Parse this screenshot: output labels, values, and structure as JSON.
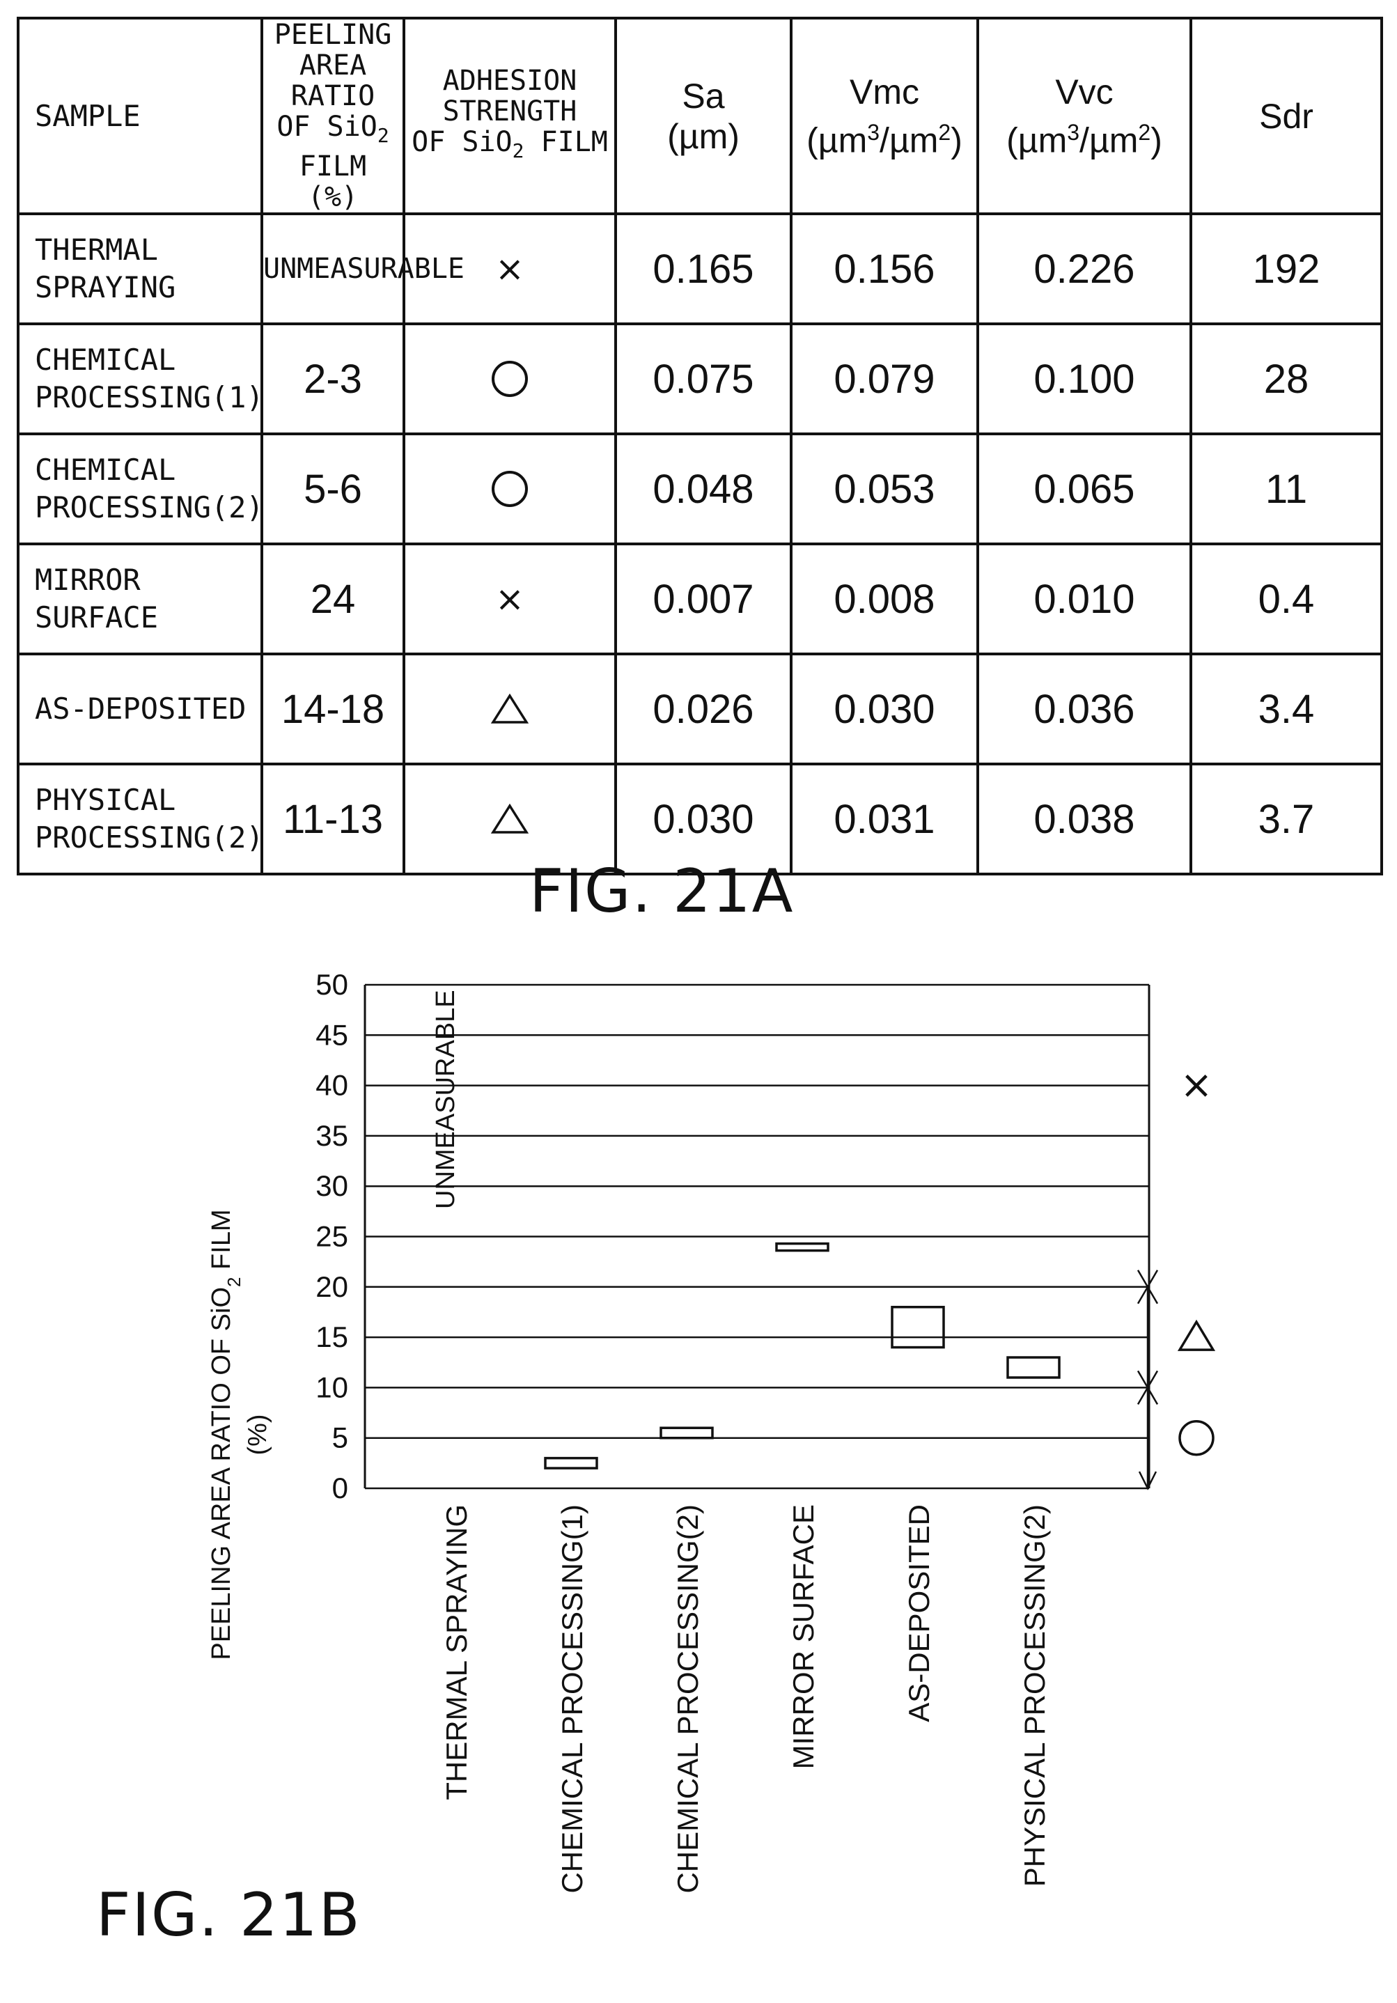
{
  "fig21a": {
    "label": "FIG. 21A",
    "headers": {
      "sample": "SAMPLE",
      "peeling_line1": "PEELING",
      "peeling_line2": "AREA RATIO",
      "peeling_line3_pre": "OF SiO",
      "peeling_line3_sub": "2",
      "peeling_line3_post": " FILM",
      "peeling_line4": "(%)",
      "adhesion_line1": "ADHESION",
      "adhesion_line2": "STRENGTH",
      "adhesion_line3_pre": "OF SiO",
      "adhesion_line3_sub": "2",
      "adhesion_line3_post": " FILM",
      "sa_line1": "Sa",
      "sa_line2": "(µm)",
      "vmc_line1": "Vmc",
      "vmc_line2_a": "(µm",
      "vmc_line2_sup1": "3",
      "vmc_line2_b": "/µm",
      "vmc_line2_sup2": "2",
      "vmc_line2_c": ")",
      "vvc_line1": "Vvc",
      "vvc_line2_a": "(µm",
      "vvc_line2_sup1": "3",
      "vvc_line2_b": "/µm",
      "vvc_line2_sup2": "2",
      "vvc_line2_c": ")",
      "sdr": "Sdr"
    },
    "rows": [
      {
        "sample_line1": "THERMAL",
        "sample_line2": "SPRAYING",
        "peeling": "UNMEASURABLE",
        "adhesion": "cross",
        "sa": "0.165",
        "vmc": "0.156",
        "vvc": "0.226",
        "sdr": "192"
      },
      {
        "sample_line1": "CHEMICAL",
        "sample_line2": "PROCESSING(1)",
        "peeling": "2-3",
        "adhesion": "circle",
        "sa": "0.075",
        "vmc": "0.079",
        "vvc": "0.100",
        "sdr": "28"
      },
      {
        "sample_line1": "CHEMICAL",
        "sample_line2": "PROCESSING(2)",
        "peeling": "5-6",
        "adhesion": "circle",
        "sa": "0.048",
        "vmc": "0.053",
        "vvc": "0.065",
        "sdr": "11"
      },
      {
        "sample_line1": "MIRROR",
        "sample_line2": "SURFACE",
        "peeling": "24",
        "adhesion": "cross",
        "sa": "0.007",
        "vmc": "0.008",
        "vvc": "0.010",
        "sdr": "0.4"
      },
      {
        "sample_line1": "AS-DEPOSITED",
        "sample_line2": "",
        "peeling": "14-18",
        "adhesion": "triangle",
        "sa": "0.026",
        "vmc": "0.030",
        "vvc": "0.036",
        "sdr": "3.4"
      },
      {
        "sample_line1": "PHYSICAL",
        "sample_line2": "PROCESSING(2)",
        "peeling": "11-13",
        "adhesion": "triangle",
        "sa": "0.030",
        "vmc": "0.031",
        "vvc": "0.038",
        "sdr": "3.7"
      }
    ],
    "symbols": {
      "cross": "×"
    }
  },
  "fig21b": {
    "label": "FIG. 21B",
    "ylabel_line1_pre": "PEELING AREA RATIO OF SiO",
    "ylabel_line1_sub": "2",
    "ylabel_line1_post": " FILM",
    "ylabel_line2": "(%)",
    "unmeasurable_note": "UNMEASURABLE",
    "zone_symbols": {
      "cross": "×"
    }
  },
  "chart_data": {
    "type": "range-bar",
    "categories": [
      "THERMAL SPRAYING",
      "CHEMICAL PROCESSING(1)",
      "CHEMICAL PROCESSING(2)",
      "MIRROR SURFACE",
      "AS-DEPOSITED",
      "PHYSICAL PROCESSING(2)"
    ],
    "ranges": [
      null,
      [
        2,
        3
      ],
      [
        5,
        6
      ],
      [
        23.7,
        24.3
      ],
      [
        14,
        18
      ],
      [
        11,
        13
      ]
    ],
    "ylim": [
      0,
      50
    ],
    "yticks": [
      0,
      5,
      10,
      15,
      20,
      25,
      30,
      35,
      40,
      45,
      50
    ],
    "grid": true,
    "zones": [
      {
        "symbol": "circle",
        "from": 0,
        "to": 10
      },
      {
        "symbol": "triangle",
        "from": 10,
        "to": 20
      },
      {
        "symbol": "cross",
        "from": 20,
        "to": 50
      }
    ]
  }
}
